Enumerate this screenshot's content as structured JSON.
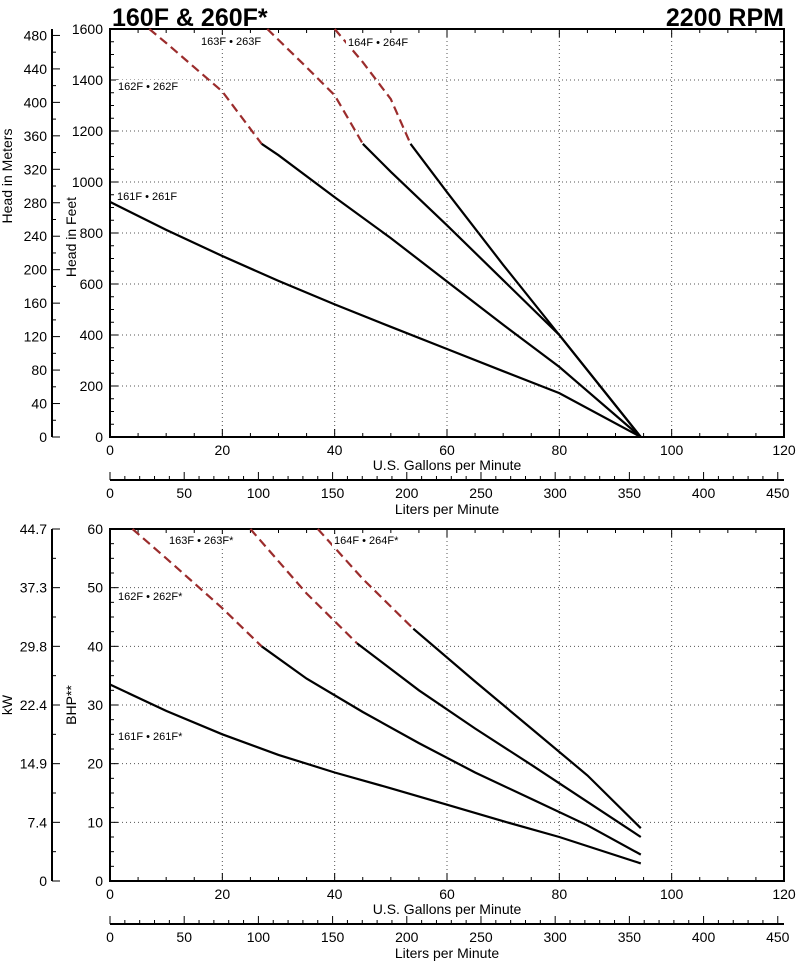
{
  "header": {
    "title_left": "160F & 260F*",
    "title_right": "2200 RPM"
  },
  "colors": {
    "solid_curve": "#000000",
    "dashed_curve": "#9b2c2c",
    "grid": "#555555"
  },
  "chart_data": [
    {
      "type": "line",
      "title": "160F & 260F*",
      "subtitle": "2200 RPM",
      "xlabel": "U.S. Gallons per Minute",
      "xlim": [
        0,
        120
      ],
      "xticks": [
        0,
        20,
        40,
        60,
        80,
        100,
        120
      ],
      "ylabel": "Head in Feet",
      "ylim": [
        0,
        1600
      ],
      "yticks": [
        0,
        200,
        400,
        600,
        800,
        1000,
        1200,
        1400,
        1600
      ],
      "y2label": "Head in Meters",
      "y2ticks": [
        0,
        40,
        80,
        120,
        160,
        200,
        240,
        280,
        320,
        360,
        400,
        440,
        480
      ],
      "x2label": "Liters per Minute",
      "x2ticks": [
        0,
        50,
        100,
        150,
        200,
        250,
        300,
        350,
        400,
        450
      ],
      "grid": true,
      "series": [
        {
          "name": "161F • 261F",
          "dashed_until": null,
          "x": [
            0,
            10,
            20,
            30,
            40,
            50,
            60,
            70,
            80,
            94.5
          ],
          "y": [
            922,
            812,
            710,
            612,
            520,
            432,
            345,
            258,
            172,
            0
          ]
        },
        {
          "name": "162F • 262F",
          "dashed_until": 27,
          "x": [
            7,
            10,
            15,
            20,
            27,
            30,
            40,
            50,
            60,
            70,
            80,
            94.5
          ],
          "y": [
            1600,
            1545,
            1450,
            1355,
            1150,
            1105,
            940,
            780,
            610,
            440,
            275,
            0
          ]
        },
        {
          "name": "163F • 263F",
          "dashed_until": 45,
          "x": [
            28,
            35,
            40,
            45,
            50,
            60,
            70,
            80,
            94.5
          ],
          "y": [
            1600,
            1450,
            1340,
            1150,
            1040,
            830,
            615,
            400,
            0
          ]
        },
        {
          "name": "164F • 264F",
          "dashed_until": 53.5,
          "x": [
            40,
            45,
            50,
            53.5,
            60,
            70,
            80,
            94.5
          ],
          "y": [
            1600,
            1470,
            1325,
            1150,
            960,
            675,
            400,
            0
          ]
        }
      ]
    },
    {
      "type": "line",
      "xlabel": "U.S. Gallons per Minute",
      "xlim": [
        0,
        120
      ],
      "xticks": [
        0,
        20,
        40,
        60,
        80,
        100,
        120
      ],
      "ylabel": "BHP**",
      "ylim": [
        0,
        60
      ],
      "yticks": [
        0,
        10,
        20,
        30,
        40,
        50,
        60
      ],
      "y2label": "kW",
      "y2ticks": [
        "0",
        "7.4",
        "14.9",
        "22.4",
        "29.8",
        "37.3",
        "44.7"
      ],
      "x2label": "Liters per Minute",
      "x2ticks": [
        0,
        50,
        100,
        150,
        200,
        250,
        300,
        350,
        400,
        450
      ],
      "grid": true,
      "series": [
        {
          "name": "161F • 261F*",
          "dashed_until": null,
          "x": [
            0,
            10,
            20,
            30,
            40,
            50,
            60,
            70,
            80,
            94.5
          ],
          "y": [
            33.5,
            29,
            25,
            21.5,
            18.5,
            15.8,
            13,
            10.2,
            7.5,
            3
          ]
        },
        {
          "name": "162F • 262F*",
          "dashed_until": 27,
          "x": [
            4,
            10,
            20,
            27,
            35,
            45,
            55,
            65,
            75,
            85,
            94.5
          ],
          "y": [
            60,
            55,
            46.5,
            40,
            34.5,
            28.8,
            23.5,
            18.5,
            14,
            9.5,
            4.5
          ]
        },
        {
          "name": "163F • 263F*",
          "dashed_until": 44,
          "x": [
            25,
            35,
            44,
            55,
            65,
            75,
            85,
            94.5
          ],
          "y": [
            60,
            49,
            40.5,
            32.5,
            26,
            19.8,
            13.5,
            7.5
          ]
        },
        {
          "name": "164F • 264F*",
          "dashed_until": 54,
          "x": [
            37,
            45,
            54,
            65,
            75,
            85,
            94.5
          ],
          "y": [
            60,
            51.5,
            43,
            34,
            26,
            18,
            9
          ]
        }
      ]
    }
  ]
}
